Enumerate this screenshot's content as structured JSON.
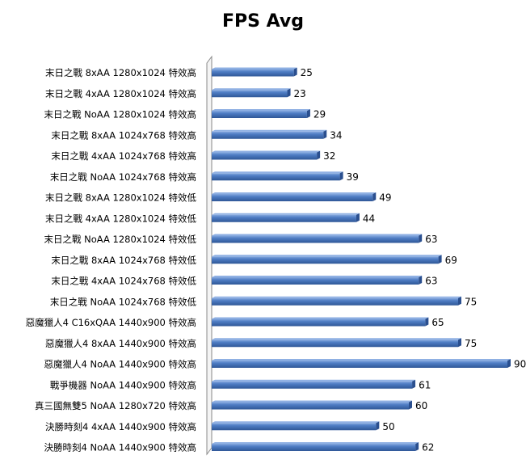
{
  "chart_data": {
    "type": "bar",
    "orientation": "horizontal",
    "title": "FPS Avg",
    "categories": [
      "末日之戰 8xAA 1280x1024 特效高",
      "末日之戰 4xAA 1280x1024 特效高",
      "末日之戰 NoAA 1280x1024 特效高",
      "末日之戰 8xAA 1024x768 特效高",
      "末日之戰 4xAA 1024x768 特效高",
      "末日之戰 NoAA 1024x768 特效高",
      "末日之戰 8xAA 1280x1024 特效低",
      "末日之戰 4xAA 1280x1024 特效低",
      "末日之戰 NoAA 1280x1024 特效低",
      "末日之戰 8xAA 1024x768 特效低",
      "末日之戰 4xAA 1024x768 特效低",
      "末日之戰 NoAA 1024x768 特效低",
      "惡魔獵人4 C16xQAA 1440x900 特效高",
      "惡魔獵人4 8xAA 1440x900 特效高",
      "惡魔獵人4 NoAA 1440x900 特效高",
      "戰爭機器 NoAA 1440x900 特效高",
      "真三國無雙5 NoAA 1280x720 特效高",
      "決勝時刻4 4xAA 1440x900 特效高",
      "決勝時刻4 NoAA 1440x900 特效高"
    ],
    "values": [
      25,
      23,
      29,
      34,
      32,
      39,
      49,
      44,
      63,
      69,
      63,
      75,
      65,
      75,
      90,
      61,
      60,
      50,
      62
    ],
    "xlim": [
      0,
      90
    ],
    "grid": false,
    "legend": "none",
    "bar_color": "#4a78c0",
    "bar_highlight": "#7fa3dc",
    "bar_shadow": "#2a4f8f"
  }
}
